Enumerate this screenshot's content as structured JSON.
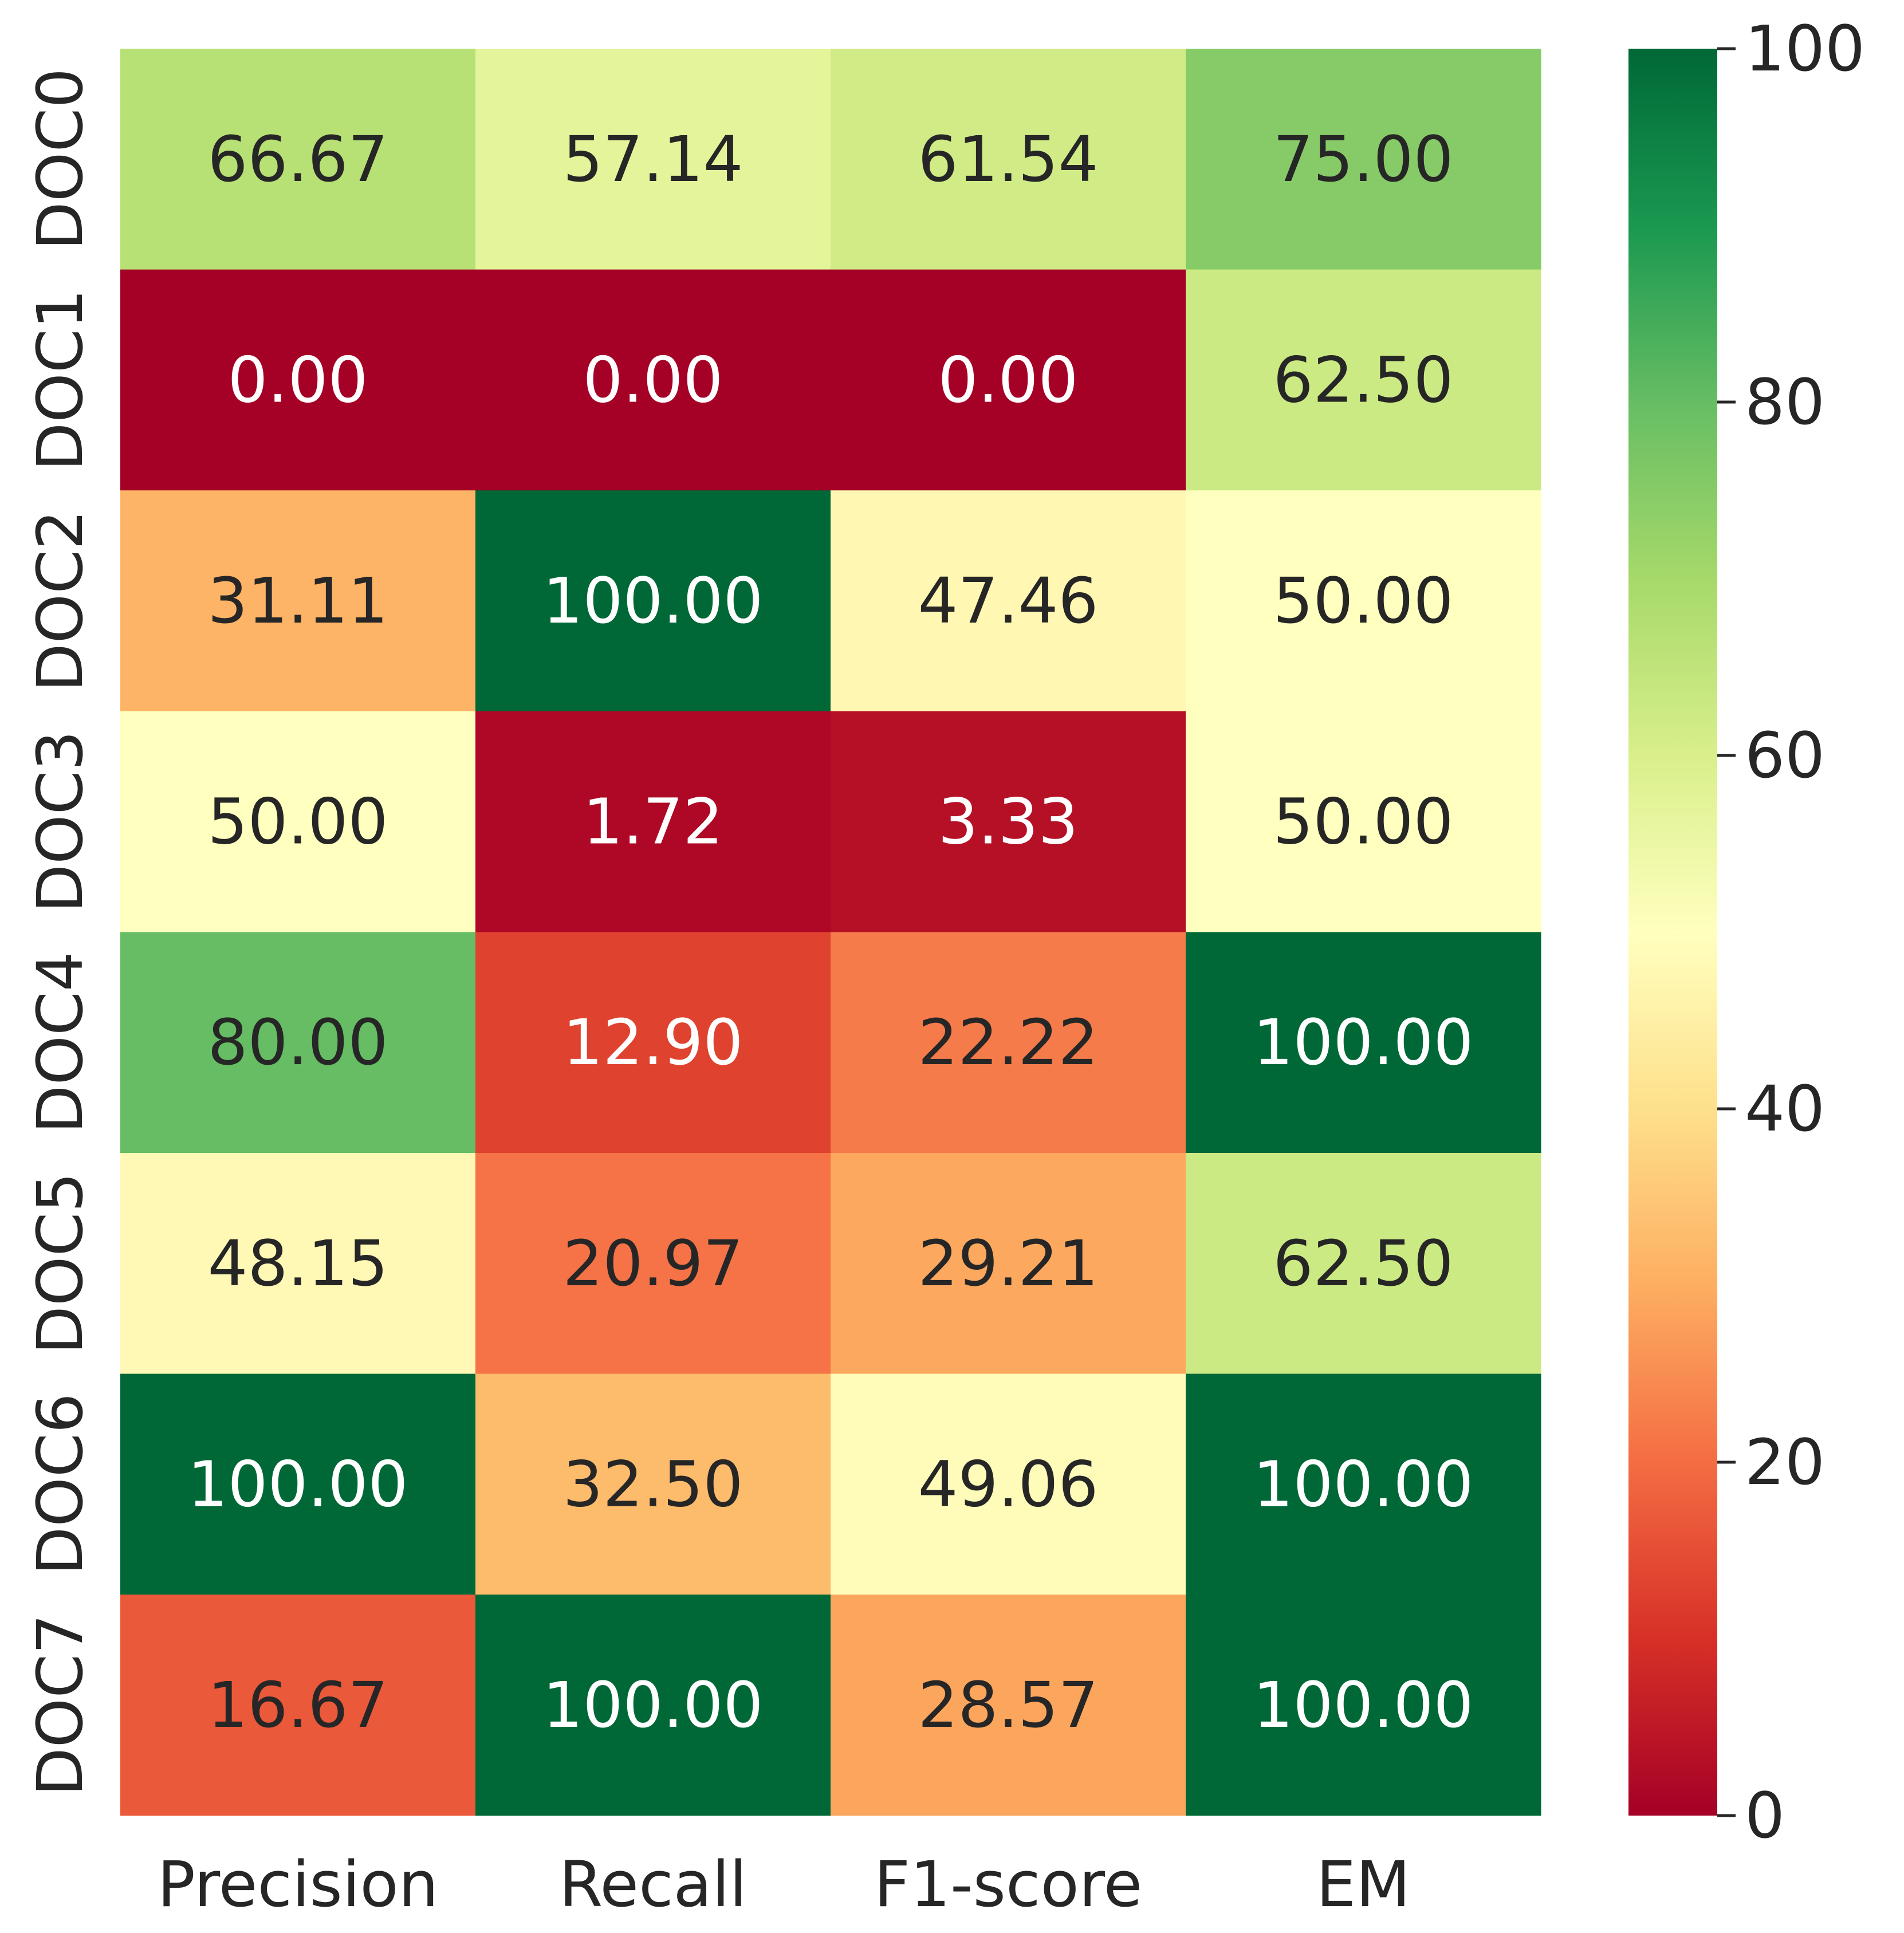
{
  "chart_data": {
    "type": "heatmap",
    "columns": [
      "Precision",
      "Recall",
      "F1-score",
      "EM"
    ],
    "rows": [
      "DOC0",
      "DOC1",
      "DOC2",
      "DOC3",
      "DOC4",
      "DOC5",
      "DOC6",
      "DOC7"
    ],
    "values": [
      [
        66.67,
        57.14,
        61.54,
        75.0
      ],
      [
        0.0,
        0.0,
        0.0,
        62.5
      ],
      [
        31.11,
        100.0,
        47.46,
        50.0
      ],
      [
        50.0,
        1.72,
        3.33,
        50.0
      ],
      [
        80.0,
        12.9,
        22.22,
        100.0
      ],
      [
        48.15,
        20.97,
        29.21,
        62.5
      ],
      [
        100.0,
        32.5,
        49.06,
        100.0
      ],
      [
        16.67,
        100.0,
        28.57,
        100.0
      ]
    ],
    "value_format": "2 decimals",
    "colormap": "RdYlGn",
    "vmin": 0,
    "vmax": 100,
    "colorbar": {
      "ticks": [
        0,
        20,
        40,
        60,
        80,
        100
      ],
      "placement": "right"
    },
    "title": "",
    "xlabel": "",
    "ylabel": ""
  }
}
